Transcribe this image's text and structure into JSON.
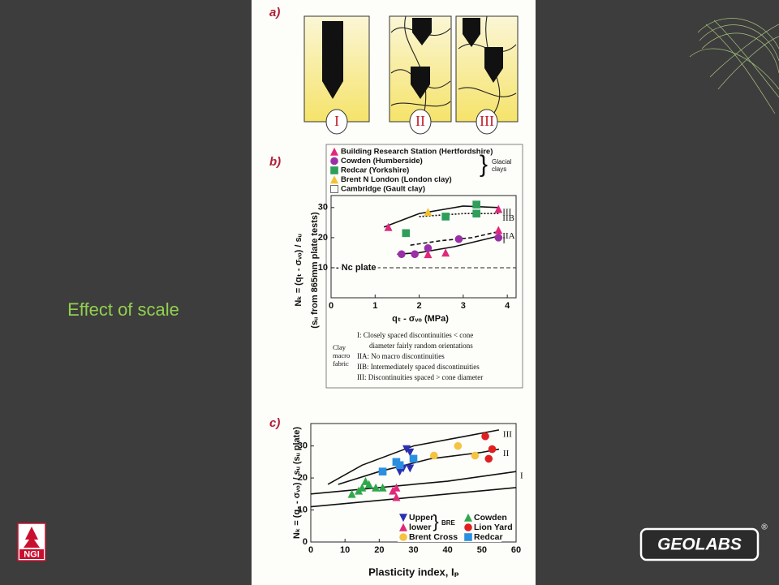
{
  "slide": {
    "title": "Effect of scale"
  },
  "figure": {
    "panel_a": {
      "label": "a)",
      "boxes": [
        "I",
        "II",
        "III"
      ]
    },
    "panel_b": {
      "label": "b)",
      "legend_note": [
        "Glacial",
        "clays"
      ],
      "x_label": "qₜ - σᵥₒ (MPa)",
      "y_label": [
        "Nₖ = (qₜ - σᵥₒ) / sᵤ",
        "(sᵤ from 865mm plate tests)"
      ],
      "xlim": [
        0,
        4.2
      ],
      "xticks": [
        0,
        1,
        2,
        3,
        4
      ],
      "ylim": [
        0,
        34
      ],
      "yticks": [
        10,
        20,
        30
      ],
      "reference": {
        "label": "- Nc plate",
        "value": 10
      },
      "series": [
        {
          "name": "Building Research Station (Hertfordshire)",
          "color": "#e0287a",
          "marker": "triangle",
          "x": [
            1.3,
            2.2,
            2.6,
            3.8,
            3.8
          ],
          "y": [
            23.5,
            14.5,
            15,
            22.5,
            29.5
          ]
        },
        {
          "name": "Cowden  (Humberside)",
          "color": "#9b2fa8",
          "marker": "circle",
          "x": [
            1.6,
            1.9,
            2.2,
            2.9,
            3.8
          ],
          "y": [
            14.5,
            14.5,
            16.5,
            19.5,
            20
          ]
        },
        {
          "name": "Redcar (Yorkshire)",
          "color": "#2e9e5a",
          "marker": "square",
          "x": [
            1.7,
            2.6,
            3.3,
            3.3
          ],
          "y": [
            21.5,
            27,
            28,
            31
          ]
        },
        {
          "name": "Brent N London (London clay)",
          "color": "#f2c230",
          "marker": "triangle",
          "x": [
            2.2
          ],
          "y": [
            28.5
          ]
        },
        {
          "name": "Cambridge (Gault clay)",
          "color": "#111111",
          "marker": "open-square",
          "x": [],
          "y": []
        }
      ],
      "curves": [
        {
          "label": "III",
          "dash": "solid",
          "x": [
            1.2,
            2,
            3,
            3.8
          ],
          "y": [
            23.5,
            28,
            30.5,
            30
          ]
        },
        {
          "label": "IIB",
          "dash": "dotted",
          "x": [
            2,
            3,
            3.8
          ],
          "y": [
            27,
            28,
            28
          ]
        },
        {
          "label": "IIA",
          "dash": "dashed",
          "x": [
            1.8,
            2.5,
            3.2,
            3.8
          ],
          "y": [
            17.5,
            19,
            20,
            22
          ]
        },
        {
          "label": "I",
          "dash": "solid",
          "x": [
            1.5,
            2,
            2.8,
            3.8
          ],
          "y": [
            14.5,
            15,
            17,
            20.5
          ]
        }
      ],
      "notes_title": [
        "Clay",
        "macro",
        "fabric"
      ],
      "notes": [
        "I: Closely spaced discontinuities < cone",
        "diameter fairly random orientations",
        "IIA: No macro discontinuities",
        "IIB: Intermediately spaced discontinuities",
        "III: Discontinuities spaced > cone diameter"
      ]
    },
    "panel_c": {
      "label": "c)",
      "legend_note": "BRE",
      "x_label": "Plasticity index, Iₚ",
      "y_label": "Nₖ = (q꜀ - σᵥₒ) / sᵤ  (sᵤ plate)",
      "xlim": [
        0,
        60
      ],
      "xticks": [
        0,
        10,
        20,
        30,
        40,
        50,
        60
      ],
      "ylim": [
        0,
        37
      ],
      "yticks": [
        0,
        10,
        20,
        30
      ],
      "series": [
        {
          "name": "Upper",
          "color": "#2b2fb0",
          "marker": "triangle-down",
          "x": [
            28,
            29,
            27,
            29,
            26
          ],
          "y": [
            29,
            28,
            23,
            23,
            22
          ]
        },
        {
          "name": "lower",
          "color": "#e0287a",
          "marker": "triangle",
          "x": [
            25,
            25,
            24
          ],
          "y": [
            14,
            17,
            16
          ]
        },
        {
          "name": "Brent Cross",
          "color": "#f5c242",
          "marker": "circle",
          "x": [
            36,
            43,
            48
          ],
          "y": [
            27,
            30,
            27
          ]
        },
        {
          "name": "Cowden",
          "color": "#2ea84a",
          "marker": "triangle",
          "x": [
            12,
            14,
            16,
            17,
            19,
            21,
            15
          ],
          "y": [
            15,
            16,
            19,
            18,
            17,
            17,
            17
          ]
        },
        {
          "name": "Lion Yard",
          "color": "#e02020",
          "marker": "circle",
          "x": [
            51,
            53,
            52
          ],
          "y": [
            33,
            29,
            26
          ]
        },
        {
          "name": "Redcar",
          "color": "#2a8fe0",
          "marker": "square",
          "x": [
            21,
            25,
            26,
            30
          ],
          "y": [
            22,
            25,
            24,
            26
          ]
        }
      ],
      "curves": [
        {
          "label": "III",
          "dash": "solid",
          "x": [
            5,
            15,
            30,
            45,
            55
          ],
          "y": [
            18,
            24,
            30,
            33,
            35
          ]
        },
        {
          "label": "II",
          "dash": "solid",
          "x": [
            8,
            20,
            35,
            50,
            55
          ],
          "y": [
            18,
            22,
            26,
            28,
            29
          ]
        },
        {
          "label": "I",
          "dash": "solid",
          "x": [
            0,
            20,
            40,
            60
          ],
          "y": [
            15,
            17,
            19,
            22
          ]
        },
        {
          "dash": "solid",
          "x": [
            0,
            60
          ],
          "y": [
            11,
            17
          ]
        }
      ]
    }
  },
  "logos": {
    "left": "NGI",
    "right": "GEOLABS",
    "right_mark": "®"
  }
}
